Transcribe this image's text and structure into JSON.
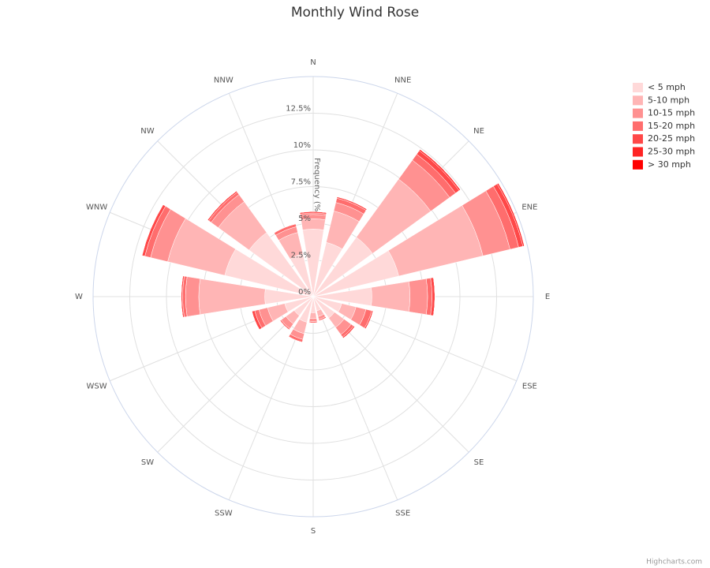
{
  "chart_data": {
    "type": "windrose",
    "title": "Monthly Wind Rose",
    "y_axis_title": "Frequency (%)",
    "credits": "Highcharts.com",
    "categories": [
      "N",
      "NNE",
      "NE",
      "ENE",
      "E",
      "ESE",
      "SE",
      "SSE",
      "S",
      "SSW",
      "SW",
      "WSW",
      "W",
      "WNW",
      "NW",
      "NNW"
    ],
    "ylim": [
      0,
      15
    ],
    "yticks": [
      {
        "value": 0,
        "label": "0%"
      },
      {
        "value": 2.5,
        "label": "2.5%"
      },
      {
        "value": 5,
        "label": "5%"
      },
      {
        "value": 7.5,
        "label": "7.5%"
      },
      {
        "value": 10,
        "label": "10%"
      },
      {
        "value": 12.5,
        "label": "12.5%"
      }
    ],
    "grid": true,
    "legend": "top-right",
    "series": [
      {
        "name": "< 5 mph",
        "color": "#ffd9d9",
        "values": [
          4.6,
          3.8,
          5.0,
          6.0,
          4.0,
          2.0,
          1.8,
          1.0,
          1.1,
          1.8,
          1.6,
          2.0,
          3.3,
          6.2,
          5.4,
          3.0
        ]
      },
      {
        "name": "5-10 mph",
        "color": "#ffb5b5",
        "values": [
          0.7,
          2.2,
          4.9,
          5.9,
          2.6,
          1.0,
          0.8,
          0.4,
          0.4,
          0.8,
          0.7,
          1.2,
          4.5,
          4.0,
          2.6,
          1.5
        ]
      },
      {
        "name": "10-15 mph",
        "color": "#ff9191",
        "values": [
          0.3,
          0.6,
          1.6,
          1.9,
          1.2,
          0.7,
          0.6,
          0.2,
          0.2,
          0.4,
          0.4,
          0.6,
          0.9,
          1.2,
          0.6,
          0.4
        ]
      },
      {
        "name": "15-20 mph",
        "color": "#ff6d6d",
        "values": [
          0.1,
          0.3,
          0.5,
          0.6,
          0.3,
          0.4,
          0.2,
          0.1,
          0.1,
          0.2,
          0.1,
          0.3,
          0.2,
          0.4,
          0.2,
          0.2
        ]
      },
      {
        "name": "20-25 mph",
        "color": "#ff4848",
        "values": [
          0.1,
          0.1,
          0.3,
          0.3,
          0.2,
          0.1,
          0.1,
          0,
          0,
          0,
          0,
          0.2,
          0.1,
          0.2,
          0.1,
          0
        ]
      },
      {
        "name": "25-30 mph",
        "color": "#ff2424",
        "values": [
          0,
          0,
          0.1,
          0.1,
          0,
          0,
          0,
          0,
          0,
          0,
          0,
          0,
          0,
          0,
          0,
          0
        ]
      },
      {
        "name": "> 30 mph",
        "color": "#ff0000",
        "values": [
          0,
          0,
          0,
          0,
          0,
          0,
          0,
          0,
          0,
          0,
          0,
          0,
          0,
          0,
          0,
          0
        ]
      }
    ]
  }
}
